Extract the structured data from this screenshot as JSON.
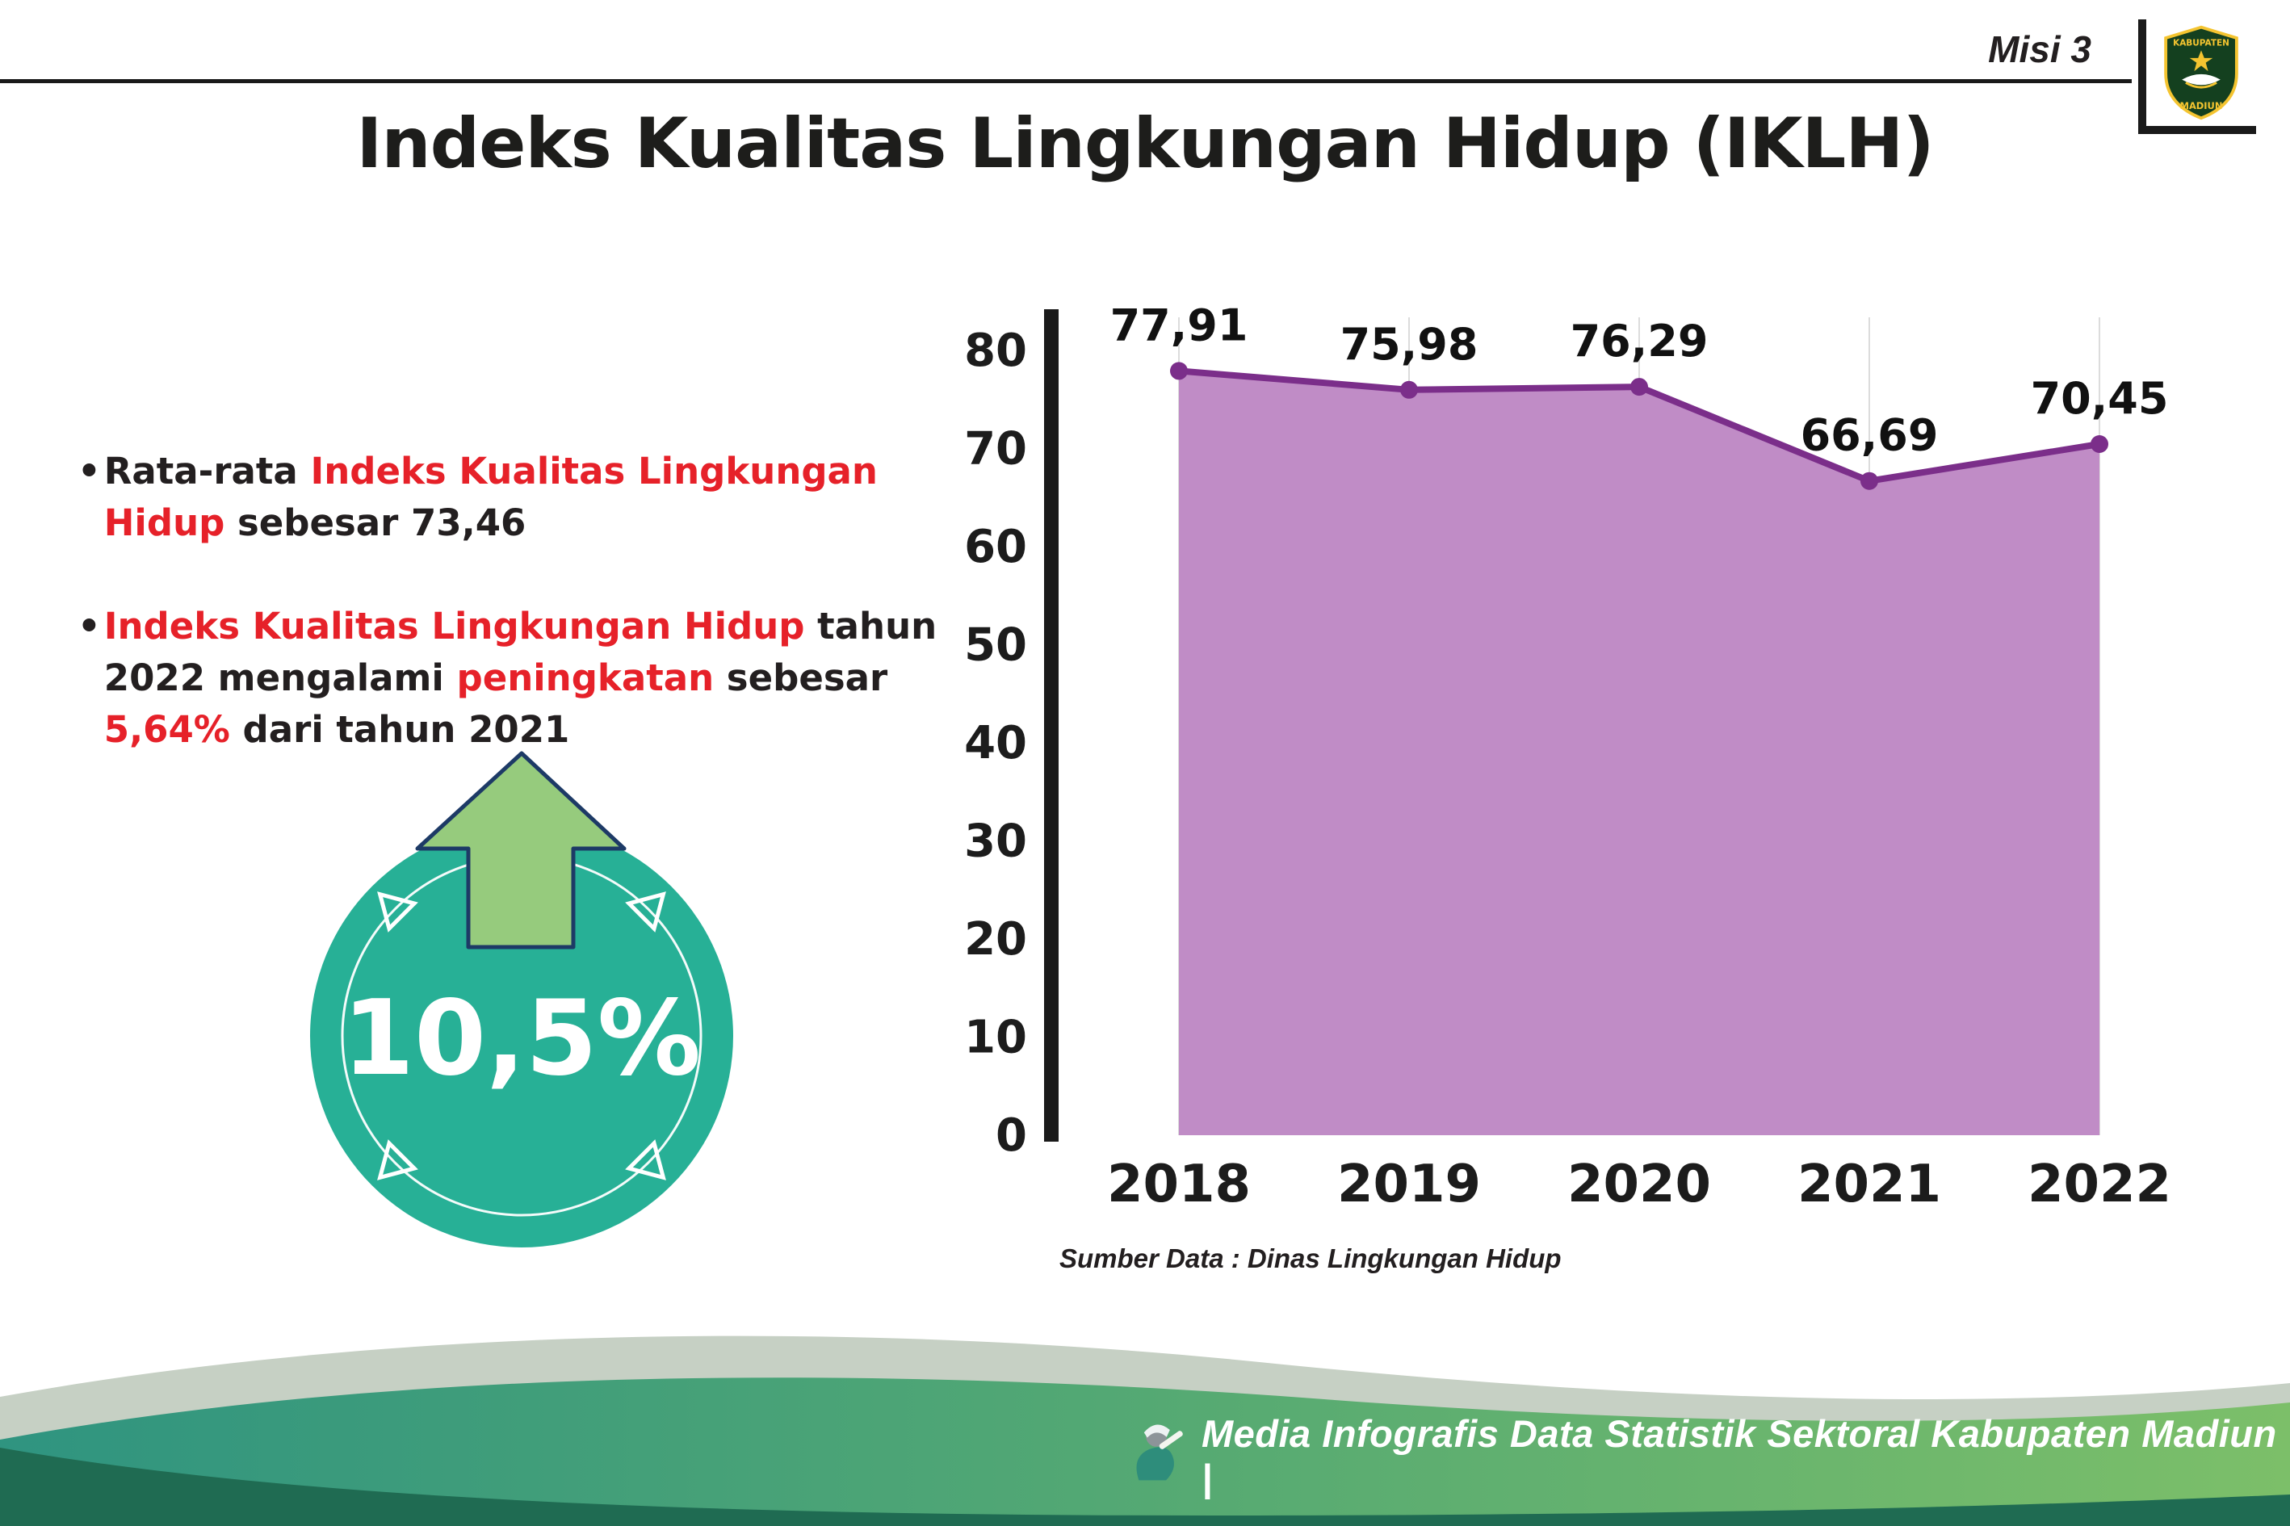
{
  "header": {
    "misi_label": "Misi 3",
    "title": "Indeks Kualitas Lingkungan Hidup (IKLH)",
    "logo_top_text": "KABUPATEN",
    "logo_bottom_text": "MADIUN"
  },
  "colors": {
    "text_black": "#231f20",
    "highlight_red": "#e62129",
    "badge_teal": "#27b096",
    "arrow_green": "#96cb7d",
    "arrow_outline": "#1d3a66"
  },
  "bullets": [
    {
      "segments": [
        {
          "text": "Rata-rata ",
          "color": "#231f20"
        },
        {
          "text": "Indeks Kualitas Lingkungan Hidup",
          "color": "#e62129"
        },
        {
          "text": " sebesar 73,46",
          "color": "#231f20"
        }
      ]
    },
    {
      "segments": [
        {
          "text": "Indeks Kualitas Lingkungan Hidup",
          "color": "#e62129"
        },
        {
          "text": " tahun 2022 mengalami ",
          "color": "#231f20"
        },
        {
          "text": "peningkatan",
          "color": "#e62129"
        },
        {
          "text": " sebesar ",
          "color": "#231f20"
        },
        {
          "text": "5,64%",
          "color": "#e62129"
        },
        {
          "text": " dari tahun 2021",
          "color": "#231f20"
        }
      ]
    }
  ],
  "badge": {
    "value": "10,5%"
  },
  "chart_data": {
    "type": "area",
    "categories": [
      "2018",
      "2019",
      "2020",
      "2021",
      "2022"
    ],
    "values": [
      77.91,
      75.98,
      76.29,
      66.69,
      70.45
    ],
    "value_labels": [
      "77,91",
      "75,98",
      "76,29",
      "66,69",
      "70,45"
    ],
    "ylim": [
      0,
      80
    ],
    "yticks": [
      0,
      10,
      20,
      30,
      40,
      50,
      60,
      70,
      80
    ],
    "grid": "vertical-light",
    "legend": "none",
    "line_color": "#7b2e8a",
    "fill_color": "#c08cc6",
    "axis_color": "#1a1a1a",
    "source_note": "Sumber Data : Dinas Lingkungan Hidup"
  },
  "footer": {
    "credit": "Media Infografis Data Statistik Sektoral Kabupaten Madiun |"
  }
}
